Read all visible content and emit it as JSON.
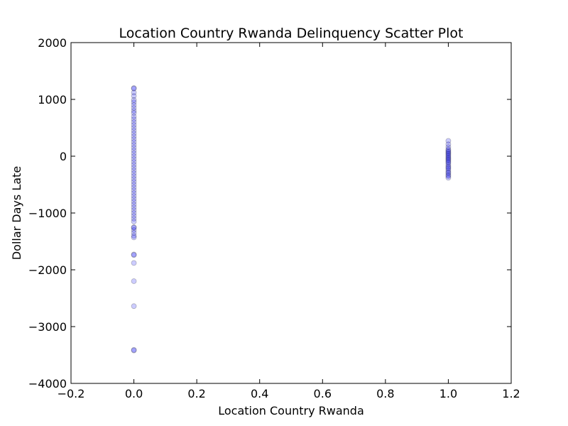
{
  "chart_data": {
    "type": "scatter",
    "title": "Location Country Rwanda Delinquency Scatter Plot",
    "x_label": "Location Country Rwanda",
    "y_label": "Dollar Days Late",
    "xlim": [
      -0.2,
      1.2
    ],
    "ylim": [
      -4000,
      2000
    ],
    "xticks": [
      {
        "value": -0.2,
        "label": "−0.2"
      },
      {
        "value": 0.0,
        "label": "0.0"
      },
      {
        "value": 0.2,
        "label": "0.2"
      },
      {
        "value": 0.4,
        "label": "0.4"
      },
      {
        "value": 0.6,
        "label": "0.6"
      },
      {
        "value": 0.8,
        "label": "0.8"
      },
      {
        "value": 1.0,
        "label": "1.0"
      },
      {
        "value": 1.2,
        "label": "1.2"
      }
    ],
    "yticks": [
      {
        "value": -4000,
        "label": "−4000"
      },
      {
        "value": -3000,
        "label": "−3000"
      },
      {
        "value": -2000,
        "label": "−2000"
      },
      {
        "value": -1000,
        "label": "−1000"
      },
      0,
      1000,
      2000
    ],
    "color": "#0000ff",
    "series": [
      {
        "x": [
          0,
          0,
          0,
          0,
          0,
          0,
          0,
          0,
          0,
          0,
          0,
          0,
          0,
          0,
          0,
          0,
          0,
          0,
          0,
          0,
          0,
          0,
          0,
          0,
          0,
          0,
          0,
          0,
          0,
          0,
          0,
          0,
          0,
          0,
          0,
          0,
          0,
          0,
          0,
          0,
          0,
          0,
          0,
          0,
          0,
          0,
          0,
          0,
          0,
          0,
          0,
          0,
          0,
          0,
          0,
          0,
          0,
          0,
          0,
          0,
          0,
          1,
          1,
          1,
          1,
          1,
          1,
          1,
          1,
          1,
          1,
          1,
          1,
          1,
          1,
          1,
          1,
          1,
          1,
          1,
          1,
          1,
          1,
          1,
          1,
          1,
          1
        ],
        "values": [
          1200,
          1190,
          1120,
          1060,
          990,
          950,
          900,
          850,
          800,
          760,
          700,
          650,
          600,
          550,
          500,
          450,
          400,
          350,
          300,
          250,
          200,
          150,
          100,
          50,
          0,
          -50,
          -100,
          -150,
          -200,
          -250,
          -300,
          -350,
          -400,
          -450,
          -500,
          -550,
          -600,
          -650,
          -700,
          -750,
          -800,
          -850,
          -900,
          -950,
          -1000,
          -1050,
          -1100,
          -1150,
          -1250,
          -1260,
          -1300,
          -1350,
          -1400,
          -1430,
          -1730,
          -1740,
          -1880,
          -2200,
          -2640,
          -3420,
          -3410,
          270,
          210,
          160,
          120,
          100,
          80,
          60,
          40,
          20,
          0,
          -20,
          -40,
          -60,
          -80,
          -100,
          -120,
          -150,
          -180,
          -200,
          -220,
          -250,
          -280,
          -300,
          -330,
          -350,
          -380
        ]
      }
    ]
  }
}
